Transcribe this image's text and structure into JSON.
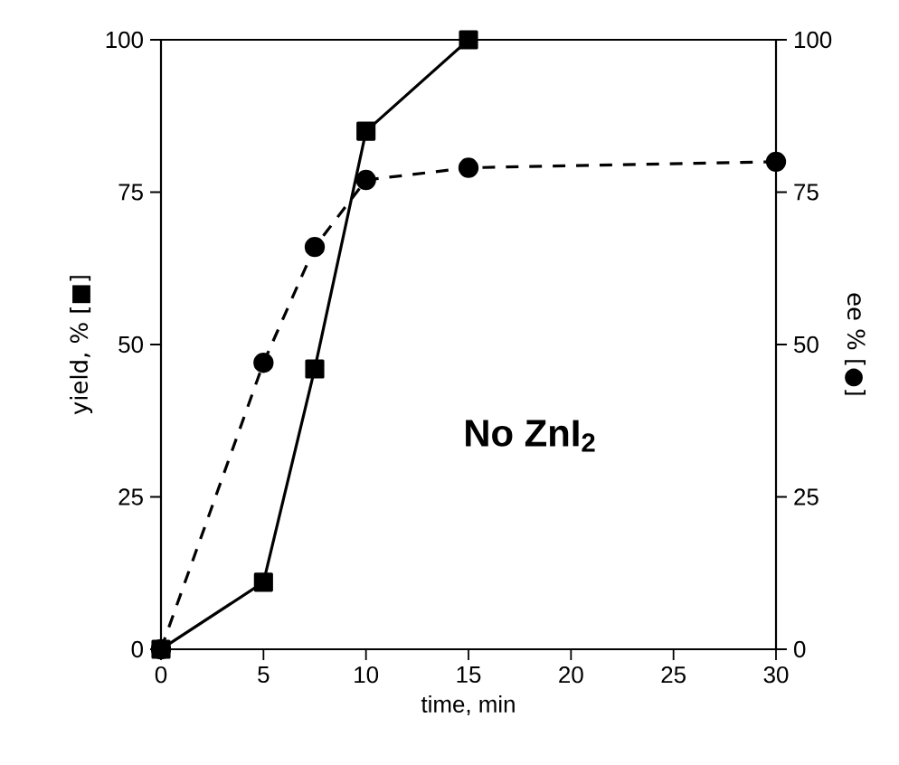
{
  "chart_data": {
    "type": "line",
    "xlabel": "time, min",
    "ylabel": "yield, % [■]",
    "y2label": "ee % [●]",
    "annotations": [
      "No ZnI$_{2}$"
    ],
    "xlim": [
      0,
      30
    ],
    "xticks": [
      0,
      5,
      10,
      15,
      20,
      25,
      30
    ],
    "ylim": [
      0,
      100
    ],
    "yticks": [
      0,
      25,
      50,
      75,
      100
    ],
    "y2lim": [
      0,
      100
    ],
    "y2ticks": [
      0,
      25,
      50,
      75,
      100
    ],
    "grid": false,
    "series": [
      {
        "color": "#000000",
        "marker": "square",
        "line_style": "solid",
        "x": [
          0,
          5,
          7.5,
          10,
          15
        ],
        "values": [
          0,
          11,
          46,
          85,
          100
        ]
      },
      {
        "color": "#000000",
        "marker": "circle",
        "line_style": "dashed",
        "axis": "y2",
        "x": [
          0,
          5,
          7.5,
          10,
          15,
          30
        ],
        "values": [
          0,
          47,
          66,
          77,
          79,
          80
        ]
      }
    ]
  }
}
